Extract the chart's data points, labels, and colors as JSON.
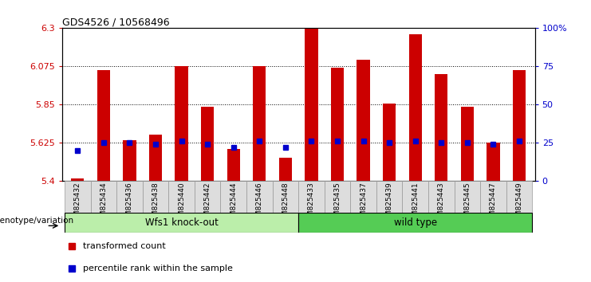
{
  "title": "GDS4526 / 10568496",
  "samples": [
    "GSM825432",
    "GSM825434",
    "GSM825436",
    "GSM825438",
    "GSM825440",
    "GSM825442",
    "GSM825444",
    "GSM825446",
    "GSM825448",
    "GSM825433",
    "GSM825435",
    "GSM825437",
    "GSM825439",
    "GSM825441",
    "GSM825443",
    "GSM825445",
    "GSM825447",
    "GSM825449"
  ],
  "bar_values": [
    5.41,
    6.05,
    5.64,
    5.67,
    6.075,
    5.835,
    5.585,
    6.075,
    5.535,
    6.295,
    6.065,
    6.115,
    5.855,
    6.265,
    6.03,
    5.835,
    5.625,
    6.05
  ],
  "percentile_values": [
    5.575,
    5.625,
    5.625,
    5.615,
    5.635,
    5.615,
    5.595,
    5.635,
    5.595,
    5.635,
    5.635,
    5.635,
    5.625,
    5.635,
    5.625,
    5.625,
    5.615,
    5.635
  ],
  "group1_label": "Wfs1 knock-out",
  "group2_label": "wild type",
  "group1_count": 9,
  "group2_count": 9,
  "ymin": 5.4,
  "ymax": 6.3,
  "yticks": [
    5.4,
    5.625,
    5.85,
    6.075,
    6.3
  ],
  "ytick_labels": [
    "5.4",
    "5.625",
    "5.85",
    "6.075",
    "6.3"
  ],
  "right_yticks": [
    0,
    25,
    50,
    75,
    100
  ],
  "right_ytick_labels": [
    "0",
    "25",
    "50",
    "75",
    "100%"
  ],
  "bar_color": "#cc0000",
  "percentile_color": "#0000cc",
  "group1_bg": "#bbeeaa",
  "group2_bg": "#55cc55",
  "axis_label_color_left": "#cc0000",
  "axis_label_color_right": "#0000cc",
  "legend_items": [
    "transformed count",
    "percentile rank within the sample"
  ],
  "genotype_label": "genotype/variation",
  "bar_bottom": 5.4,
  "grid_lines": [
    5.625,
    5.85,
    6.075
  ],
  "xtick_bg": "#dddddd"
}
